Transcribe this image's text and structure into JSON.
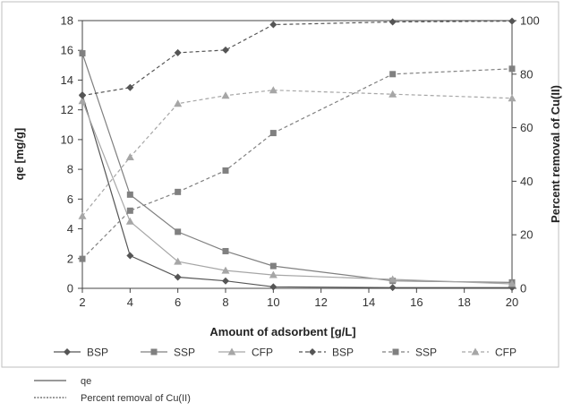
{
  "chart_data": {
    "type": "line",
    "x": [
      2,
      4,
      6,
      8,
      10,
      15,
      20
    ],
    "xlabel": "Amount of adsorbent [g/L]",
    "xlim": [
      2,
      20
    ],
    "xticks": [
      2,
      4,
      6,
      8,
      10,
      12,
      14,
      16,
      18,
      20
    ],
    "ylabel": "qe [mg/g]",
    "ylim": [
      0,
      18
    ],
    "yticks": [
      0,
      2,
      4,
      6,
      8,
      10,
      12,
      14,
      16,
      18
    ],
    "y2label": "Percent removal of Cu(II)",
    "y2lim": [
      0,
      100
    ],
    "y2ticks": [
      0,
      20,
      40,
      60,
      80,
      100
    ],
    "grid": false,
    "legend_position": "bottom",
    "series": [
      {
        "name": "BSP",
        "axis": "left",
        "style": "solid",
        "marker": "diamond",
        "values": [
          13.0,
          2.2,
          0.75,
          0.5,
          0.1,
          0.05,
          0.05
        ]
      },
      {
        "name": "SSP",
        "axis": "left",
        "style": "solid",
        "marker": "square",
        "values": [
          15.8,
          6.3,
          3.8,
          2.5,
          1.5,
          0.5,
          0.4
        ]
      },
      {
        "name": "CFP",
        "axis": "left",
        "style": "solid",
        "marker": "triangle",
        "values": [
          12.6,
          4.5,
          1.8,
          1.2,
          0.9,
          0.6,
          0.3
        ]
      },
      {
        "name": "BSP",
        "axis": "right",
        "style": "dashed",
        "marker": "diamond",
        "values": [
          72,
          75,
          88,
          89,
          98.5,
          99.5,
          99.8
        ]
      },
      {
        "name": "SSP",
        "axis": "right",
        "style": "dashed",
        "marker": "square",
        "values": [
          11,
          29,
          36,
          44,
          58,
          80,
          82
        ]
      },
      {
        "name": "CFP",
        "axis": "right",
        "style": "dashed",
        "marker": "triangle",
        "values": [
          27,
          49,
          69,
          72,
          74,
          72.5,
          71
        ]
      }
    ],
    "key": [
      {
        "style": "solid",
        "label": "qe"
      },
      {
        "style": "dashed",
        "label": "Percent removal of Cu(II)"
      }
    ]
  },
  "colors": {
    "BSP": "#555555",
    "SSP": "#808080",
    "CFP": "#a6a6a6",
    "axis": "#444444",
    "frame": "#bfbfbf"
  }
}
